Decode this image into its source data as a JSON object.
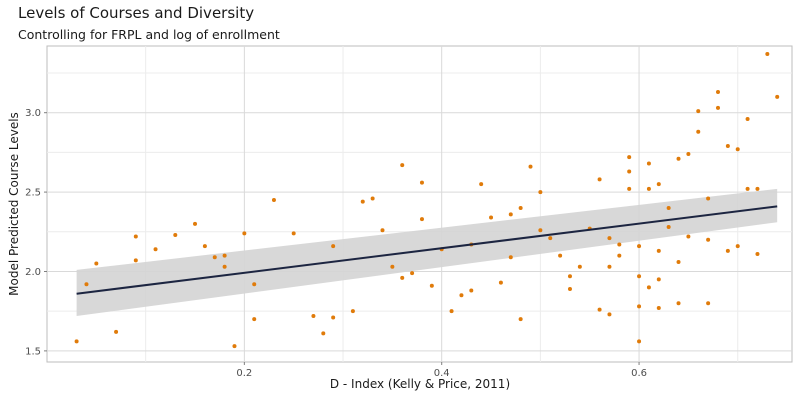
{
  "chart_data": {
    "type": "scatter",
    "title": "Levels of Courses and Diversity",
    "subtitle": "Controlling for FRPL and log of enrollment",
    "xlabel": "D - Index (Kelly & Price, 2011)",
    "ylabel": "Model Predicted Course Levels",
    "xlim": [
      0.0,
      0.755
    ],
    "ylim": [
      1.43,
      3.42
    ],
    "x_ticks": [
      0.2,
      0.4,
      0.6
    ],
    "x_tick_labels": [
      "0.2",
      "0.4",
      "0.6"
    ],
    "y_ticks": [
      1.5,
      2.0,
      2.5,
      3.0
    ],
    "y_tick_labels": [
      "1.5",
      "2.0",
      "2.5",
      "3.0"
    ],
    "grid": true,
    "points_color": "#e07b0a",
    "fit_color": "#1c2541",
    "band_color": "#d4d4d4",
    "points": [
      [
        0.03,
        1.56
      ],
      [
        0.04,
        1.92
      ],
      [
        0.05,
        2.05
      ],
      [
        0.07,
        1.62
      ],
      [
        0.09,
        2.22
      ],
      [
        0.09,
        2.07
      ],
      [
        0.11,
        2.14
      ],
      [
        0.13,
        2.23
      ],
      [
        0.15,
        2.3
      ],
      [
        0.16,
        2.16
      ],
      [
        0.17,
        2.09
      ],
      [
        0.18,
        2.1
      ],
      [
        0.18,
        2.03
      ],
      [
        0.19,
        1.53
      ],
      [
        0.2,
        2.24
      ],
      [
        0.21,
        1.7
      ],
      [
        0.21,
        1.92
      ],
      [
        0.23,
        2.45
      ],
      [
        0.25,
        2.24
      ],
      [
        0.27,
        1.72
      ],
      [
        0.28,
        1.61
      ],
      [
        0.29,
        2.16
      ],
      [
        0.29,
        1.71
      ],
      [
        0.31,
        1.75
      ],
      [
        0.32,
        2.44
      ],
      [
        0.33,
        2.46
      ],
      [
        0.34,
        2.26
      ],
      [
        0.35,
        2.03
      ],
      [
        0.36,
        2.67
      ],
      [
        0.36,
        1.96
      ],
      [
        0.37,
        1.99
      ],
      [
        0.38,
        2.33
      ],
      [
        0.38,
        2.56
      ],
      [
        0.39,
        1.91
      ],
      [
        0.4,
        2.14
      ],
      [
        0.41,
        1.75
      ],
      [
        0.42,
        1.85
      ],
      [
        0.43,
        1.88
      ],
      [
        0.43,
        2.17
      ],
      [
        0.44,
        2.55
      ],
      [
        0.45,
        2.34
      ],
      [
        0.46,
        1.93
      ],
      [
        0.47,
        2.09
      ],
      [
        0.47,
        2.36
      ],
      [
        0.48,
        2.4
      ],
      [
        0.48,
        1.7
      ],
      [
        0.49,
        2.66
      ],
      [
        0.5,
        2.26
      ],
      [
        0.5,
        2.5
      ],
      [
        0.51,
        2.21
      ],
      [
        0.52,
        2.1
      ],
      [
        0.53,
        1.97
      ],
      [
        0.53,
        1.89
      ],
      [
        0.54,
        2.03
      ],
      [
        0.55,
        2.27
      ],
      [
        0.56,
        2.58
      ],
      [
        0.56,
        1.76
      ],
      [
        0.57,
        2.21
      ],
      [
        0.57,
        2.03
      ],
      [
        0.57,
        1.73
      ],
      [
        0.58,
        2.17
      ],
      [
        0.58,
        2.1
      ],
      [
        0.59,
        2.63
      ],
      [
        0.59,
        2.72
      ],
      [
        0.59,
        2.52
      ],
      [
        0.6,
        1.56
      ],
      [
        0.6,
        2.16
      ],
      [
        0.6,
        1.78
      ],
      [
        0.6,
        1.97
      ],
      [
        0.61,
        2.68
      ],
      [
        0.61,
        2.52
      ],
      [
        0.61,
        1.9
      ],
      [
        0.62,
        1.95
      ],
      [
        0.62,
        2.55
      ],
      [
        0.62,
        2.13
      ],
      [
        0.62,
        1.77
      ],
      [
        0.63,
        2.4
      ],
      [
        0.63,
        2.28
      ],
      [
        0.64,
        2.71
      ],
      [
        0.64,
        2.06
      ],
      [
        0.64,
        1.8
      ],
      [
        0.65,
        2.22
      ],
      [
        0.65,
        2.74
      ],
      [
        0.66,
        3.01
      ],
      [
        0.66,
        2.88
      ],
      [
        0.67,
        2.46
      ],
      [
        0.67,
        2.2
      ],
      [
        0.67,
        1.8
      ],
      [
        0.68,
        3.03
      ],
      [
        0.68,
        3.13
      ],
      [
        0.69,
        2.13
      ],
      [
        0.69,
        2.79
      ],
      [
        0.7,
        2.77
      ],
      [
        0.7,
        2.16
      ],
      [
        0.71,
        2.96
      ],
      [
        0.71,
        2.52
      ],
      [
        0.72,
        2.52
      ],
      [
        0.72,
        2.11
      ],
      [
        0.73,
        3.37
      ],
      [
        0.74,
        3.1
      ]
    ],
    "fit": {
      "x": [
        0.03,
        0.74
      ],
      "y": [
        1.86,
        2.41
      ],
      "lower": [
        1.72,
        2.31
      ],
      "upper": [
        2.01,
        2.52
      ]
    }
  }
}
